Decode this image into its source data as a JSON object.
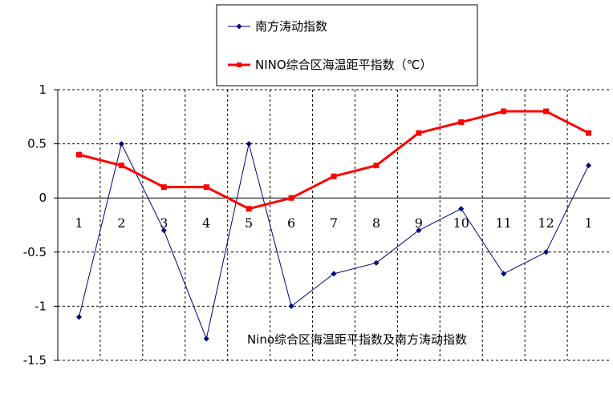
{
  "chart_data": {
    "type": "line",
    "title": "Nino综合区海温距平指数及南方涛动指数",
    "categories": [
      "1",
      "2",
      "3",
      "4",
      "5",
      "6",
      "7",
      "8",
      "9",
      "10",
      "11",
      "12",
      "1"
    ],
    "ylim": [
      -1.5,
      1
    ],
    "yticks": [
      "1",
      "0.5",
      "0",
      "-0.5",
      "-1",
      "-1.5"
    ],
    "ytick_values": [
      1,
      0.5,
      0,
      -0.5,
      -1,
      -1.5
    ],
    "grid": true,
    "legend_position": "top-center",
    "series": [
      {
        "name": "南方涛动指数",
        "color": "#00007f",
        "marker": "diamond",
        "values": [
          -1.1,
          0.5,
          -0.3,
          -1.3,
          0.5,
          -1.0,
          -0.7,
          -0.6,
          -0.3,
          -0.1,
          -0.7,
          -0.5,
          0.3
        ]
      },
      {
        "name": "NINO综合区海温距平指数（℃）",
        "color": "#ff0000",
        "marker": "square",
        "values": [
          0.4,
          0.3,
          0.1,
          0.1,
          -0.1,
          0.0,
          0.2,
          0.3,
          0.6,
          0.7,
          0.8,
          0.8,
          0.6
        ]
      }
    ]
  }
}
